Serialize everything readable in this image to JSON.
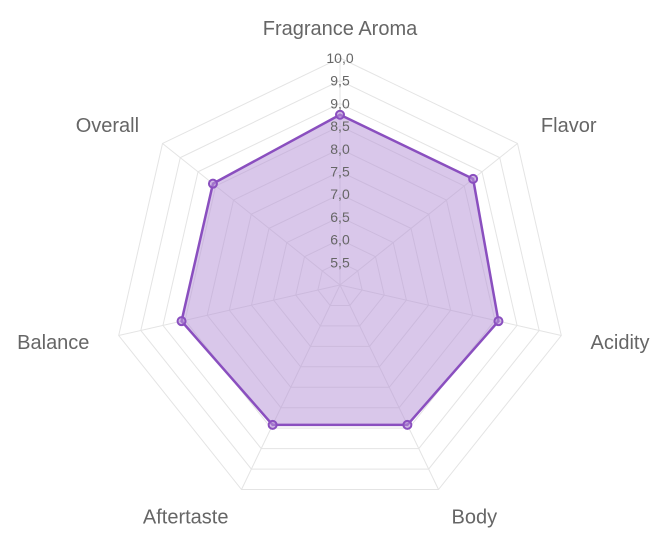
{
  "chart_data": {
    "type": "radar",
    "categories": [
      "Fragrance Aroma",
      "Flavor",
      "Acidity",
      "Body",
      "Aftertaste",
      "Balance",
      "Overall"
    ],
    "series": [
      {
        "values": [
          8.75,
          8.75,
          8.58,
          8.42,
          8.42,
          8.58,
          8.58
        ]
      }
    ],
    "r_min": 5.0,
    "r_max": 10.0,
    "tick_step": 0.5,
    "tick_labels": [
      "5,5",
      "6,0",
      "6,5",
      "7,0",
      "7,5",
      "8,0",
      "8,5",
      "9,0",
      "9,5",
      "10,0"
    ],
    "grid": true,
    "legend": "none",
    "colors": {
      "line": "#8a4fbf",
      "fill": "#b48fd6",
      "grid": "#e4e4e4",
      "text": "#666666"
    }
  }
}
